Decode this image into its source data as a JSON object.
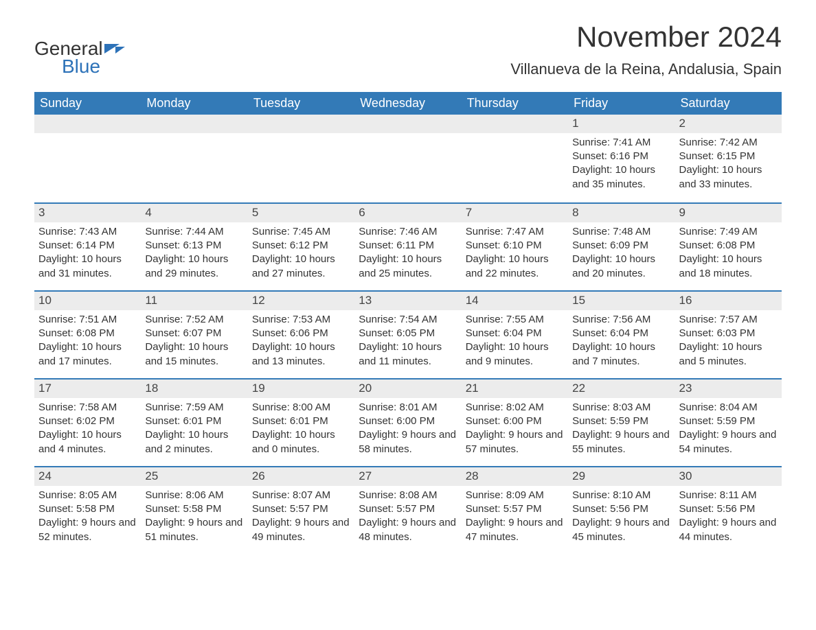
{
  "logo": {
    "part1": "General",
    "part2": "Blue"
  },
  "title": "November 2024",
  "location": "Villanueva de la Reina, Andalusia, Spain",
  "colors": {
    "header_bg": "#337ab7",
    "header_text": "#ffffff",
    "daynum_bg": "#ececec",
    "text": "#333333",
    "accent": "#2d72b8",
    "row_border": "#337ab7",
    "background": "#ffffff"
  },
  "typography": {
    "month_title_fontsize": 42,
    "location_fontsize": 22,
    "weekday_fontsize": 18,
    "daynum_fontsize": 17,
    "body_fontsize": 15,
    "font_family": "Arial"
  },
  "layout": {
    "columns": 7,
    "weeks": 5,
    "cell_min_height": 128
  },
  "weekdays": [
    "Sunday",
    "Monday",
    "Tuesday",
    "Wednesday",
    "Thursday",
    "Friday",
    "Saturday"
  ],
  "weeks": [
    [
      {
        "empty": true
      },
      {
        "empty": true
      },
      {
        "empty": true
      },
      {
        "empty": true
      },
      {
        "empty": true
      },
      {
        "num": "1",
        "sunrise": "Sunrise: 7:41 AM",
        "sunset": "Sunset: 6:16 PM",
        "daylight": "Daylight: 10 hours and 35 minutes."
      },
      {
        "num": "2",
        "sunrise": "Sunrise: 7:42 AM",
        "sunset": "Sunset: 6:15 PM",
        "daylight": "Daylight: 10 hours and 33 minutes."
      }
    ],
    [
      {
        "num": "3",
        "sunrise": "Sunrise: 7:43 AM",
        "sunset": "Sunset: 6:14 PM",
        "daylight": "Daylight: 10 hours and 31 minutes."
      },
      {
        "num": "4",
        "sunrise": "Sunrise: 7:44 AM",
        "sunset": "Sunset: 6:13 PM",
        "daylight": "Daylight: 10 hours and 29 minutes."
      },
      {
        "num": "5",
        "sunrise": "Sunrise: 7:45 AM",
        "sunset": "Sunset: 6:12 PM",
        "daylight": "Daylight: 10 hours and 27 minutes."
      },
      {
        "num": "6",
        "sunrise": "Sunrise: 7:46 AM",
        "sunset": "Sunset: 6:11 PM",
        "daylight": "Daylight: 10 hours and 25 minutes."
      },
      {
        "num": "7",
        "sunrise": "Sunrise: 7:47 AM",
        "sunset": "Sunset: 6:10 PM",
        "daylight": "Daylight: 10 hours and 22 minutes."
      },
      {
        "num": "8",
        "sunrise": "Sunrise: 7:48 AM",
        "sunset": "Sunset: 6:09 PM",
        "daylight": "Daylight: 10 hours and 20 minutes."
      },
      {
        "num": "9",
        "sunrise": "Sunrise: 7:49 AM",
        "sunset": "Sunset: 6:08 PM",
        "daylight": "Daylight: 10 hours and 18 minutes."
      }
    ],
    [
      {
        "num": "10",
        "sunrise": "Sunrise: 7:51 AM",
        "sunset": "Sunset: 6:08 PM",
        "daylight": "Daylight: 10 hours and 17 minutes."
      },
      {
        "num": "11",
        "sunrise": "Sunrise: 7:52 AM",
        "sunset": "Sunset: 6:07 PM",
        "daylight": "Daylight: 10 hours and 15 minutes."
      },
      {
        "num": "12",
        "sunrise": "Sunrise: 7:53 AM",
        "sunset": "Sunset: 6:06 PM",
        "daylight": "Daylight: 10 hours and 13 minutes."
      },
      {
        "num": "13",
        "sunrise": "Sunrise: 7:54 AM",
        "sunset": "Sunset: 6:05 PM",
        "daylight": "Daylight: 10 hours and 11 minutes."
      },
      {
        "num": "14",
        "sunrise": "Sunrise: 7:55 AM",
        "sunset": "Sunset: 6:04 PM",
        "daylight": "Daylight: 10 hours and 9 minutes."
      },
      {
        "num": "15",
        "sunrise": "Sunrise: 7:56 AM",
        "sunset": "Sunset: 6:04 PM",
        "daylight": "Daylight: 10 hours and 7 minutes."
      },
      {
        "num": "16",
        "sunrise": "Sunrise: 7:57 AM",
        "sunset": "Sunset: 6:03 PM",
        "daylight": "Daylight: 10 hours and 5 minutes."
      }
    ],
    [
      {
        "num": "17",
        "sunrise": "Sunrise: 7:58 AM",
        "sunset": "Sunset: 6:02 PM",
        "daylight": "Daylight: 10 hours and 4 minutes."
      },
      {
        "num": "18",
        "sunrise": "Sunrise: 7:59 AM",
        "sunset": "Sunset: 6:01 PM",
        "daylight": "Daylight: 10 hours and 2 minutes."
      },
      {
        "num": "19",
        "sunrise": "Sunrise: 8:00 AM",
        "sunset": "Sunset: 6:01 PM",
        "daylight": "Daylight: 10 hours and 0 minutes."
      },
      {
        "num": "20",
        "sunrise": "Sunrise: 8:01 AM",
        "sunset": "Sunset: 6:00 PM",
        "daylight": "Daylight: 9 hours and 58 minutes."
      },
      {
        "num": "21",
        "sunrise": "Sunrise: 8:02 AM",
        "sunset": "Sunset: 6:00 PM",
        "daylight": "Daylight: 9 hours and 57 minutes."
      },
      {
        "num": "22",
        "sunrise": "Sunrise: 8:03 AM",
        "sunset": "Sunset: 5:59 PM",
        "daylight": "Daylight: 9 hours and 55 minutes."
      },
      {
        "num": "23",
        "sunrise": "Sunrise: 8:04 AM",
        "sunset": "Sunset: 5:59 PM",
        "daylight": "Daylight: 9 hours and 54 minutes."
      }
    ],
    [
      {
        "num": "24",
        "sunrise": "Sunrise: 8:05 AM",
        "sunset": "Sunset: 5:58 PM",
        "daylight": "Daylight: 9 hours and 52 minutes."
      },
      {
        "num": "25",
        "sunrise": "Sunrise: 8:06 AM",
        "sunset": "Sunset: 5:58 PM",
        "daylight": "Daylight: 9 hours and 51 minutes."
      },
      {
        "num": "26",
        "sunrise": "Sunrise: 8:07 AM",
        "sunset": "Sunset: 5:57 PM",
        "daylight": "Daylight: 9 hours and 49 minutes."
      },
      {
        "num": "27",
        "sunrise": "Sunrise: 8:08 AM",
        "sunset": "Sunset: 5:57 PM",
        "daylight": "Daylight: 9 hours and 48 minutes."
      },
      {
        "num": "28",
        "sunrise": "Sunrise: 8:09 AM",
        "sunset": "Sunset: 5:57 PM",
        "daylight": "Daylight: 9 hours and 47 minutes."
      },
      {
        "num": "29",
        "sunrise": "Sunrise: 8:10 AM",
        "sunset": "Sunset: 5:56 PM",
        "daylight": "Daylight: 9 hours and 45 minutes."
      },
      {
        "num": "30",
        "sunrise": "Sunrise: 8:11 AM",
        "sunset": "Sunset: 5:56 PM",
        "daylight": "Daylight: 9 hours and 44 minutes."
      }
    ]
  ]
}
